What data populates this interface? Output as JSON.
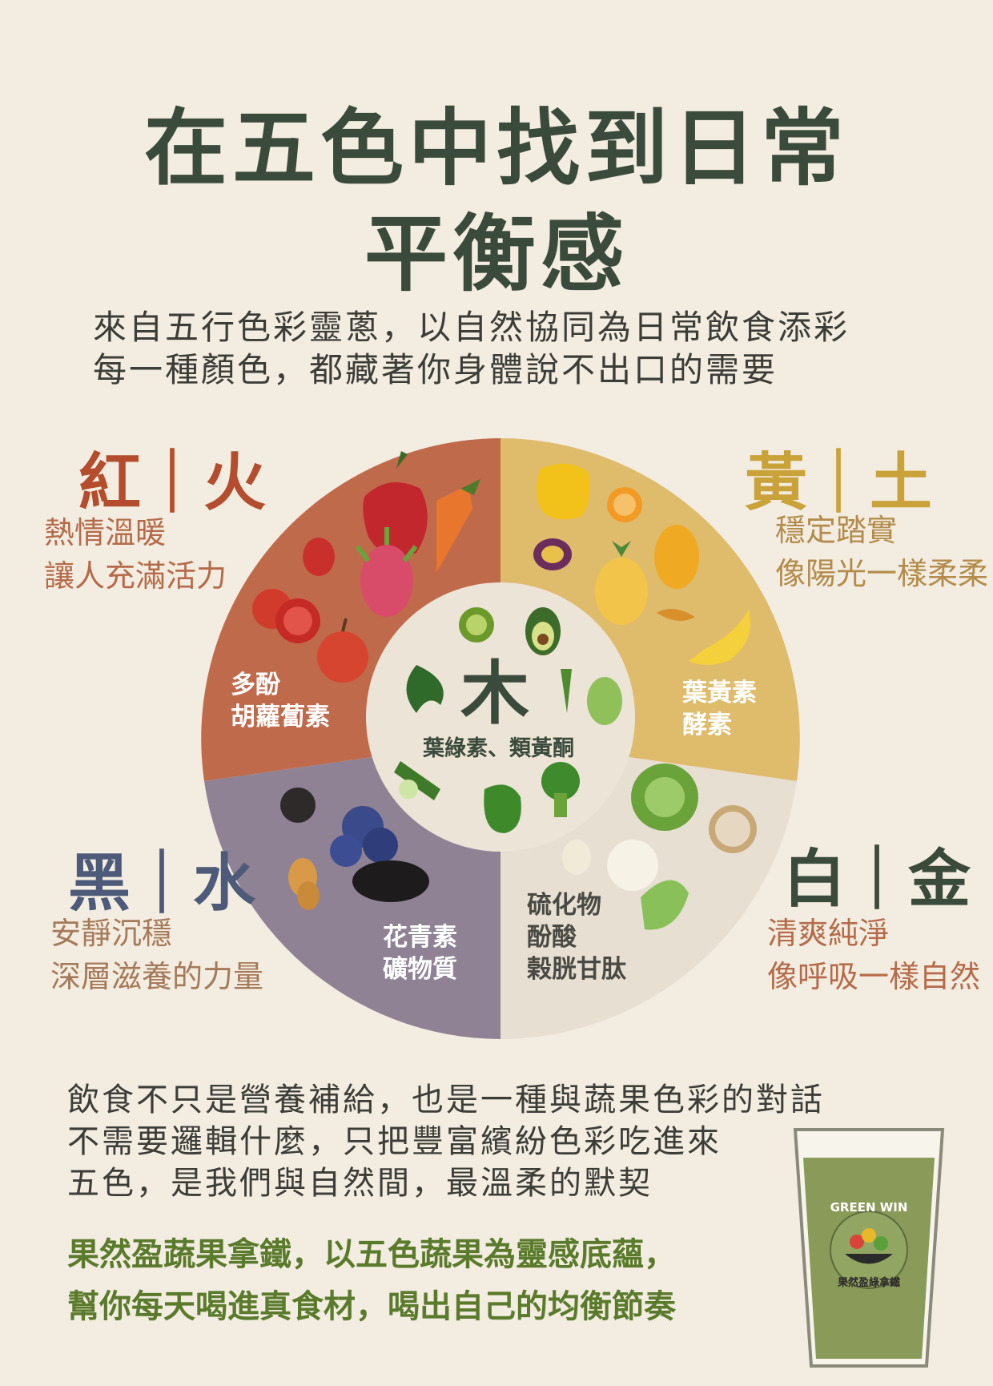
{
  "title": {
    "line1": "在五色中找到日常",
    "line2": "平衡感"
  },
  "intro": {
    "line1": "來自五行色彩靈蔥，以自然協同為日常飲食添彩",
    "line2": "每一種顏色，都藏著你身體說不出口的需要"
  },
  "elements": {
    "red": {
      "title": "紅｜火",
      "desc1": "熱情溫暖",
      "desc2": "讓人充滿活力",
      "nutrient1": "多酚",
      "nutrient2": "胡蘿蔔素",
      "color": "#c06a4c"
    },
    "yellow": {
      "title": "黃｜土",
      "desc1": "穩定踏實",
      "desc2": "像陽光一樣柔柔",
      "nutrient1": "葉黃素",
      "nutrient2": "酵素",
      "color": "#dfbb6c"
    },
    "black": {
      "title": "黑｜水",
      "desc1": "安靜沉穩",
      "desc2": "深層滋養的力量",
      "nutrient1": "花青素",
      "nutrient2": "礦物質",
      "color": "#8e8294"
    },
    "white": {
      "title": "白｜金",
      "desc1": "清爽純淨",
      "desc2": "像呼吸一樣自然",
      "nutrient1": "硫化物",
      "nutrient2": "酚酸",
      "nutrient3": "榖胱甘肽",
      "color": "#e7dfd2"
    },
    "green": {
      "title": "木",
      "nutrient": "葉綠素、類黃酮",
      "color": "#ece4d6"
    }
  },
  "closing": {
    "line1": "飲食不只是營養補給，也是一種與蔬果色彩的對話",
    "line2": "不需要邏輯什麼，只把豐富繽紛色彩吃進來",
    "line3": "五色，是我們與自然間，最溫柔的默契"
  },
  "promo": {
    "line1": "果然盈蔬果拿鐵，以五色蔬果為靈感底蘊，",
    "line2": "幫你每天喝進真食材，喝出自己的均衡節奏"
  },
  "cup_logo": {
    "brand": "GREEN WIN",
    "name": "果然盈綠拿鐵"
  }
}
